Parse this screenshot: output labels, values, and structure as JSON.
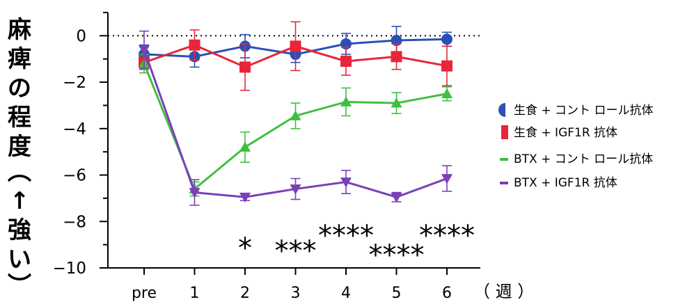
{
  "chart_data": {
    "type": "line",
    "title": "",
    "ylabel_chars": [
      "麻",
      "痺",
      "の",
      "程",
      "度",
      "︵",
      "↑",
      "強",
      "い",
      "︶"
    ],
    "xlabel": "",
    "x_unit_label": "（ 週 ）",
    "categories": [
      "pre",
      "1",
      "2",
      "3",
      "4",
      "5",
      "6"
    ],
    "ylim": [
      -10,
      1
    ],
    "yticks": [
      0,
      -2,
      -4,
      -6,
      -8,
      -10
    ],
    "ytick_labels": [
      "0",
      "−2",
      "−4",
      "−6",
      "−8",
      "−10"
    ],
    "reference_line": 0,
    "series": [
      {
        "name": "生食 + コント ロール抗体",
        "color": "#2b4fb5",
        "marker": "circle",
        "values": [
          -0.8,
          -0.9,
          -0.45,
          -0.8,
          -0.35,
          -0.2,
          -0.15
        ],
        "err": [
          0.4,
          0.45,
          0.5,
          0.35,
          0.45,
          0.6,
          0.3
        ]
      },
      {
        "name": "生食 + IGF1R 抗体",
        "color": "#e8253a",
        "marker": "square",
        "values": [
          -1.15,
          -0.4,
          -1.35,
          -0.45,
          -1.1,
          -0.9,
          -1.3
        ],
        "err": [
          0.3,
          0.65,
          1.0,
          1.05,
          0.6,
          0.55,
          0.85
        ]
      },
      {
        "name": "BTX + コント ロール抗体",
        "color": "#3fbf3f",
        "marker": "triangle-up",
        "values": [
          -1.2,
          -6.6,
          -4.8,
          -3.45,
          -2.85,
          -2.9,
          -2.5
        ],
        "err": [
          0.4,
          0.3,
          0.65,
          0.55,
          0.6,
          0.45,
          0.3
        ]
      },
      {
        "name": "BTX + IGF1R 抗体",
        "color": "#7b3fb8",
        "marker": "triangle-down",
        "values": [
          -0.6,
          -6.75,
          -6.95,
          -6.6,
          -6.3,
          -6.95,
          -6.15
        ],
        "err": [
          0.8,
          0.55,
          0.15,
          0.45,
          0.5,
          0.2,
          0.55
        ]
      }
    ],
    "significance": [
      {
        "x": "2",
        "label": "*"
      },
      {
        "x": "3",
        "label": "***"
      },
      {
        "x": "4",
        "label": "****"
      },
      {
        "x": "5",
        "label": "****"
      },
      {
        "x": "6",
        "label": "****"
      }
    ],
    "legend_position": "right"
  }
}
